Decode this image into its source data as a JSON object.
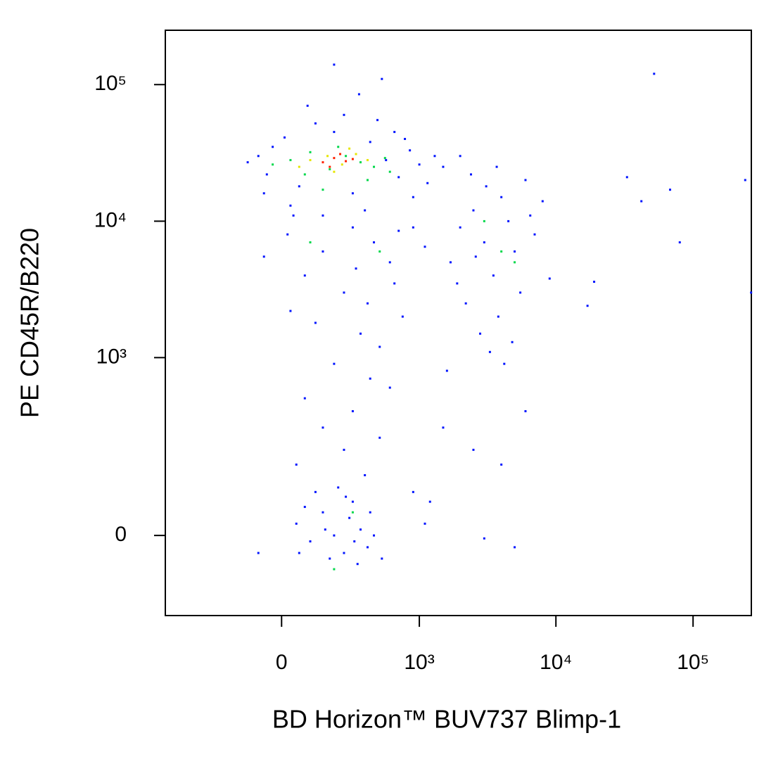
{
  "chart_data": {
    "type": "scatter",
    "xlabel": "BD Horizon™ BUV737 Blimp-1",
    "ylabel": "PE CD45R/B220",
    "xscale": "biexponential",
    "yscale": "biexponential",
    "xlim": [
      -690,
      266000
    ],
    "ylim": [
      -180,
      250000
    ],
    "xticks": [
      0,
      {
        "value": 1000,
        "label": "10³"
      },
      {
        "value": 10000,
        "label": "10⁴"
      },
      {
        "value": 100000,
        "label": "10⁵"
      }
    ],
    "yticks": [
      0,
      {
        "value": 1000,
        "label": "10³"
      },
      {
        "value": 10000,
        "label": "10⁴"
      },
      {
        "value": 100000,
        "label": "10⁵"
      }
    ],
    "series": [
      {
        "color": "#0014ff",
        "x": [
          -80,
          -50,
          10,
          60,
          120,
          200,
          300,
          420,
          560,
          700,
          850,
          1000,
          1150,
          -120,
          30,
          250,
          380,
          650,
          900,
          480,
          -30,
          150,
          780,
          1300,
          -60,
          90,
          340,
          520,
          200,
          1500,
          20,
          150,
          300,
          450,
          600,
          80,
          250,
          400,
          -60,
          700,
          120,
          350,
          500,
          30,
          200,
          420,
          600,
          80,
          300,
          150,
          500,
          250,
          50,
          380,
          650,
          750,
          900,
          1100,
          40,
          320,
          50,
          100,
          150,
          200,
          250,
          300,
          350,
          400,
          120,
          180,
          280,
          330,
          80,
          220,
          420,
          60,
          160,
          260,
          310,
          450,
          -80,
          520,
          900,
          1100,
          3000,
          5000,
          1700,
          2000,
          2500,
          3000,
          3500,
          4000,
          4500,
          5000,
          6000,
          7000,
          2200,
          2800,
          3300,
          3800,
          4200,
          1900,
          2600,
          3100,
          5500,
          6500,
          8000,
          2400,
          3700,
          4800,
          1600,
          1500,
          2500,
          4000,
          1200,
          6000,
          2000,
          9000,
          52000,
          33000,
          68000,
          240000,
          42000,
          80000,
          19000,
          17000,
          265000
        ],
        "values": [
          30000,
          22000,
          41000,
          18000,
          52000,
          45000,
          16000,
          38000,
          28000,
          21000,
          33000,
          26000,
          19000,
          27000,
          13000,
          60000,
          12000,
          45000,
          15000,
          55000,
          35000,
          11000,
          40000,
          30000,
          16000,
          70000,
          85000,
          110000,
          140000,
          25000,
          8000,
          6000,
          9000,
          7000,
          5000,
          4000,
          3000,
          2500,
          5500,
          8500,
          1800,
          1500,
          1200,
          2200,
          900,
          700,
          600,
          500,
          400,
          300,
          250,
          200,
          150,
          120,
          3500,
          2000,
          9000,
          6500,
          11000,
          4500,
          20,
          -10,
          40,
          0,
          -30,
          60,
          10,
          -20,
          80,
          -40,
          30,
          -50,
          50,
          90,
          40,
          -30,
          10,
          70,
          -10,
          0,
          -30,
          -40,
          80,
          20,
          -5,
          -20,
          5000,
          9000,
          12000,
          7000,
          4000,
          15000,
          10000,
          6000,
          20000,
          8000,
          2500,
          1500,
          1100,
          2000,
          900,
          3500,
          5500,
          18000,
          3000,
          11000,
          14000,
          22000,
          25000,
          1300,
          800,
          300,
          200,
          150,
          60,
          400,
          30000,
          3800,
          120000,
          21000,
          17000,
          20000,
          14000,
          7000,
          3600,
          2400,
          3000
        ]
      },
      {
        "color": "#00d84a",
        "x": [
          30,
          100,
          180,
          260,
          350,
          450,
          550,
          80,
          220,
          400,
          -30,
          600,
          150,
          3000,
          4000,
          200,
          300,
          5000,
          500,
          100
        ],
        "values": [
          28000,
          32000,
          24000,
          30000,
          27000,
          25000,
          29000,
          22000,
          35000,
          20000,
          26000,
          23000,
          17000,
          10000,
          6000,
          -60,
          40,
          5000,
          6000,
          7000
        ]
      },
      {
        "color": "#e6e600",
        "x": [
          100,
          170,
          240,
          320,
          400,
          60,
          280,
          200
        ],
        "values": [
          28000,
          30000,
          26000,
          31000,
          28000,
          25000,
          34000,
          23000
        ]
      },
      {
        "color": "#ff2000",
        "x": [
          150,
          200,
          260,
          180,
          230,
          300
        ],
        "values": [
          27000,
          29000,
          27500,
          25000,
          31000,
          28500
        ]
      }
    ]
  }
}
